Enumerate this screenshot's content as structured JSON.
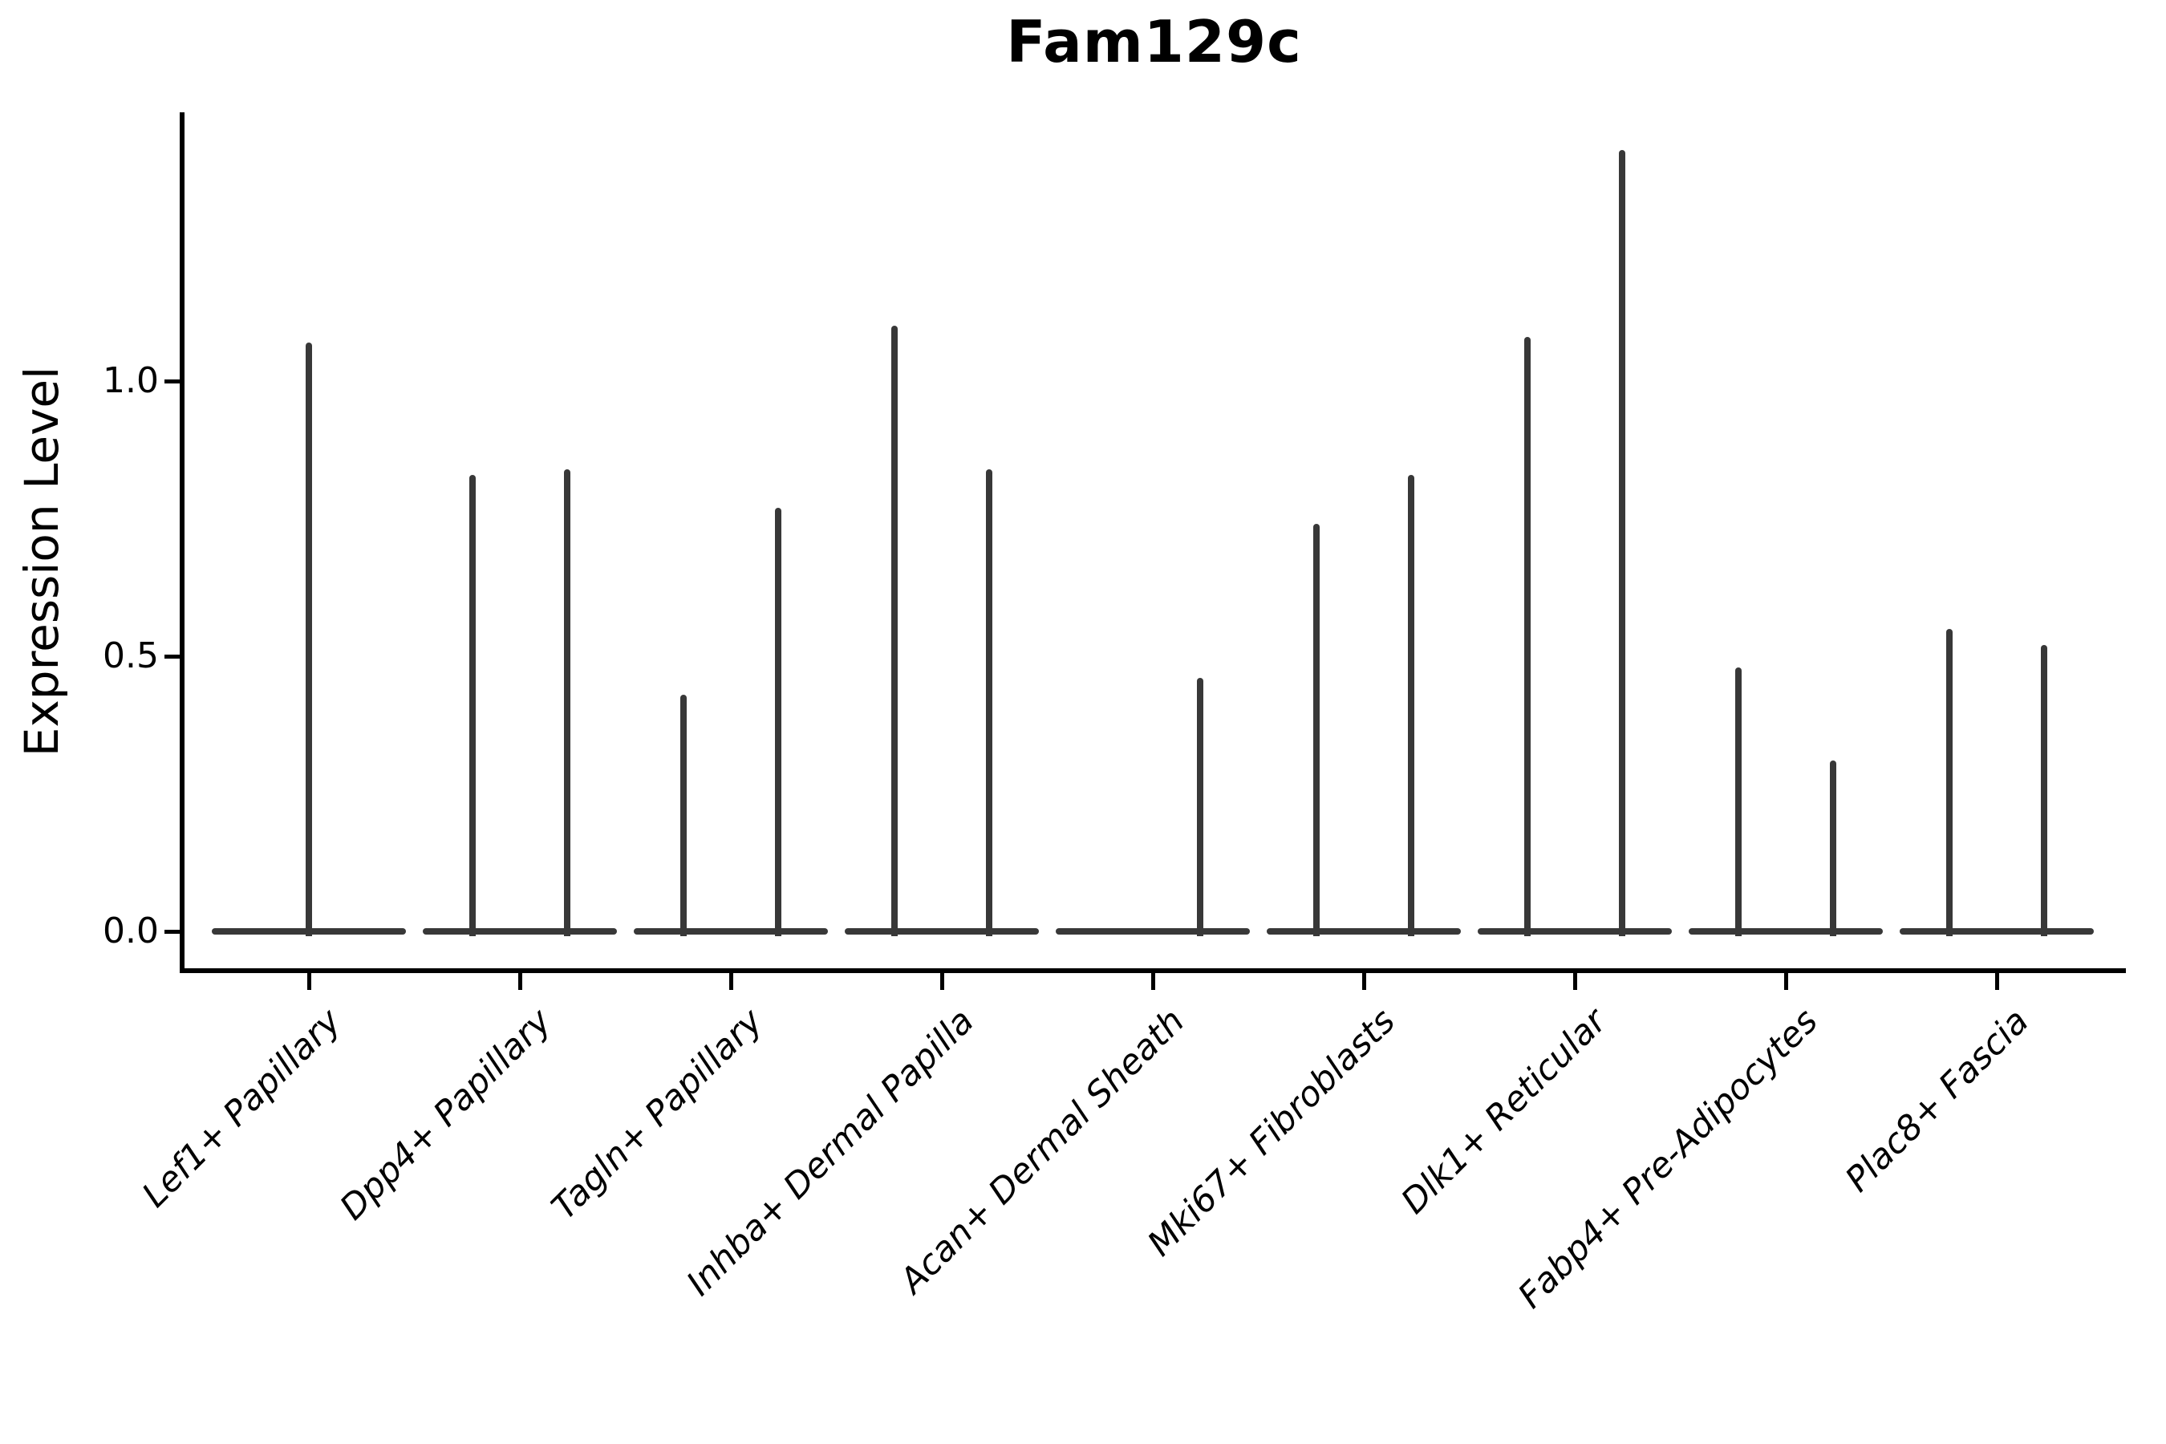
{
  "title": "Fam129c",
  "axes": {
    "ylabel": "Expression Level",
    "ytick_labels": [
      "0.0",
      "0.5",
      "1.0"
    ]
  },
  "chart_data": {
    "type": "violin",
    "title": "Fam129c",
    "xlabel": "",
    "ylabel": "Expression Level",
    "ylim": [
      0,
      1.49
    ],
    "yticks": [
      0.0,
      0.5,
      1.0
    ],
    "grid": false,
    "legend": null,
    "violin_color": "#383838",
    "categories": [
      "Lef1+ Papillary",
      "Dpp4+ Papillary",
      "Tagln+ Papillary",
      "Inhba+ Dermal Papilla",
      "Acan+ Dermal Sheath",
      "Mki67+ Fibroblasts",
      "Dlk1+ Reticular",
      "Fabp4+ Pre-Adipocytes",
      "Plac8+ Fascia"
    ],
    "violins": [
      {
        "category": "Lef1+ Papillary",
        "baseline_value": 0,
        "spikes": [
          {
            "slot": "center",
            "max_expression": 1.07
          }
        ]
      },
      {
        "category": "Dpp4+ Papillary",
        "baseline_value": 0,
        "spikes": [
          {
            "slot": "left",
            "max_expression": 0.83
          },
          {
            "slot": "right",
            "max_expression": 0.84
          }
        ]
      },
      {
        "category": "Tagln+ Papillary",
        "baseline_value": 0,
        "spikes": [
          {
            "slot": "left",
            "max_expression": 0.43
          },
          {
            "slot": "right",
            "max_expression": 0.77
          }
        ]
      },
      {
        "category": "Inhba+ Dermal Papilla",
        "baseline_value": 0,
        "spikes": [
          {
            "slot": "left",
            "max_expression": 1.1
          },
          {
            "slot": "right",
            "max_expression": 0.84
          }
        ]
      },
      {
        "category": "Acan+ Dermal Sheath",
        "baseline_value": 0,
        "spikes": [
          {
            "slot": "right",
            "max_expression": 0.46
          }
        ]
      },
      {
        "category": "Mki67+ Fibroblasts",
        "baseline_value": 0,
        "spikes": [
          {
            "slot": "left",
            "max_expression": 0.74
          },
          {
            "slot": "right",
            "max_expression": 0.83
          }
        ]
      },
      {
        "category": "Dlk1+ Reticular",
        "baseline_value": 0,
        "spikes": [
          {
            "slot": "left",
            "max_expression": 1.08
          },
          {
            "slot": "right",
            "max_expression": 1.42
          }
        ]
      },
      {
        "category": "Fabp4+ Pre-Adipocytes",
        "baseline_value": 0,
        "spikes": [
          {
            "slot": "left",
            "max_expression": 0.48
          },
          {
            "slot": "right",
            "max_expression": 0.31
          }
        ]
      },
      {
        "category": "Plac8+ Fascia",
        "baseline_value": 0,
        "spikes": [
          {
            "slot": "left",
            "max_expression": 0.55
          },
          {
            "slot": "right",
            "max_expression": 0.52
          }
        ]
      }
    ]
  }
}
